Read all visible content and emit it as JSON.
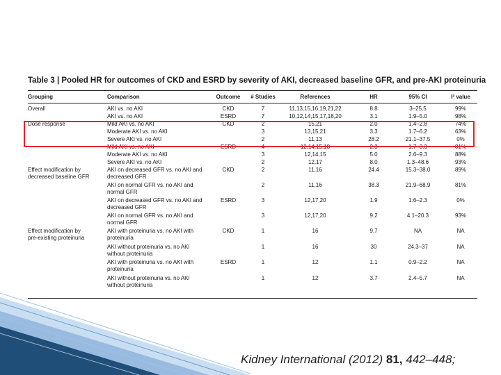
{
  "title": "Table 3 | Pooled HR for outcomes of CKD and ESRD by severity of AKI, decreased baseline GFR, and pre-AKI proteinuria",
  "headers": {
    "grouping": "Grouping",
    "comparison": "Comparison",
    "outcome": "Outcome",
    "studies": "# Studies",
    "references": "References",
    "hr": "HR",
    "ci": "95% CI",
    "i2": "I² value"
  },
  "rows": [
    {
      "grouping": [
        "Overall"
      ],
      "comparison": [
        "AKI vs. no AKI"
      ],
      "outcome": "CKD",
      "studies": "7",
      "references": "11,13,15,16,19,21,22",
      "hr": "8.8",
      "ci": "3–25.5",
      "i2": "99%"
    },
    {
      "grouping": [],
      "comparison": [
        "AKI vs. no AKI"
      ],
      "outcome": "ESRD",
      "studies": "7",
      "references": "10,12,14,15,17,18,20",
      "hr": "3.1",
      "ci": "1.9–5.0",
      "i2": "98%"
    },
    {
      "grouping": [
        "Dose response"
      ],
      "comparison": [
        "Mild AKI vs. no AKI"
      ],
      "outcome": "CKD",
      "studies": "2",
      "references": "15,21",
      "hr": "2.0",
      "ci": "1.4–2.8",
      "i2": "74%"
    },
    {
      "grouping": [],
      "comparison": [
        "Moderate AKI vs. no AKI"
      ],
      "outcome": "",
      "studies": "3",
      "references": "13,15,21",
      "hr": "3.3",
      "ci": "1.7–6.2",
      "i2": "63%"
    },
    {
      "grouping": [],
      "comparison": [
        "Severe AKI vs. no AKI"
      ],
      "outcome": "",
      "studies": "2",
      "references": "11,13",
      "hr": "28.2",
      "ci": "21.1–37.5",
      "i2": "0%"
    },
    {
      "grouping": [],
      "comparison": [
        "Mild AKI vs. no AKI"
      ],
      "outcome": "ESRD",
      "studies": "4",
      "references": "12,14,15,18",
      "hr": "2.3",
      "ci": "1.7–3.3",
      "i2": "81%"
    },
    {
      "grouping": [],
      "comparison": [
        "Moderate AKI vs. no AKI"
      ],
      "outcome": "",
      "studies": "3",
      "references": "12,14,15",
      "hr": "5.0",
      "ci": "2.6–9.3",
      "i2": "88%"
    },
    {
      "grouping": [],
      "comparison": [
        "Severe AKI vs. no AKI"
      ],
      "outcome": "",
      "studies": "2",
      "references": "12,17",
      "hr": "8.0",
      "ci": "1.3–48.6",
      "i2": "93%"
    },
    {
      "grouping": [
        "Effect modification by",
        "decreased baseline GFR"
      ],
      "comparison": [
        "AKI on decreased GFR vs. no AKI and",
        "decreased GFR"
      ],
      "outcome": "CKD",
      "studies": "2",
      "references": "11,16",
      "hr": "24.4",
      "ci": "15.3–38.0",
      "i2": "89%"
    },
    {
      "grouping": [],
      "comparison": [
        "AKI on normal GFR vs. no AKI and",
        "normal GFR"
      ],
      "outcome": "",
      "studies": "2",
      "references": "11,16",
      "hr": "38.3",
      "ci": "21.9–68.9",
      "i2": "81%"
    },
    {
      "grouping": [],
      "comparison": [
        "AKI on decreased GFR vs. no AKI and",
        "decreased GFR"
      ],
      "outcome": "ESRD",
      "studies": "3",
      "references": "12,17,20",
      "hr": "1.9",
      "ci": "1.6–2.3",
      "i2": "0%"
    },
    {
      "grouping": [],
      "comparison": [
        "AKI on normal GFR vs. no AKI and",
        "normal GFR"
      ],
      "outcome": "",
      "studies": "3",
      "references": "12,17,20",
      "hr": "9.2",
      "ci": "4.1–20.3",
      "i2": "93%"
    },
    {
      "grouping": [
        "Effect modification by",
        "pre-existing proteinuria"
      ],
      "comparison": [
        "AKI with proteinuria vs. no AKI with",
        "proteinuria"
      ],
      "outcome": "CKD",
      "studies": "1",
      "references": "16",
      "hr": "9.7",
      "ci": "NA",
      "i2": "NA"
    },
    {
      "grouping": [],
      "comparison": [
        "AKI without proteinuria vs. no AKI",
        "without proteinuria"
      ],
      "outcome": "",
      "studies": "1",
      "references": "16",
      "hr": "30",
      "ci": "24.3–37",
      "i2": "NA"
    },
    {
      "grouping": [],
      "comparison": [
        "AKI with proteinuria vs. no AKI with",
        "proteinuria"
      ],
      "outcome": "ESRD",
      "studies": "1",
      "references": "12",
      "hr": "1.1",
      "ci": "0.9–2.2",
      "i2": "NA"
    },
    {
      "grouping": [],
      "comparison": [
        "AKI without proteinuria vs. no AKI",
        "without proteinuria"
      ],
      "outcome": "",
      "studies": "1",
      "references": "12",
      "hr": "3.7",
      "ci": "2.4–5.7",
      "i2": "NA"
    }
  ],
  "citation": {
    "journal": "Kidney International",
    "year": "(2012)",
    "volume": "81,",
    "pages": "442–448;"
  },
  "colors": {
    "highlight": "#e8232b",
    "decoration_dark": "#1f4e79",
    "decoration_light": "#9cc3e6"
  }
}
